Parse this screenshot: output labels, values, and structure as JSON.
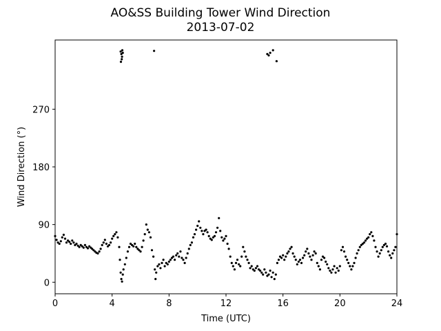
{
  "chart_data": {
    "type": "scatter",
    "title": "AO&SS Building Tower Wind Direction",
    "subtitle": "2013-07-02",
    "xlabel": "Time (UTC)",
    "ylabel": "Wind Direction (°)",
    "xlim": [
      0,
      24
    ],
    "ylim": [
      -18,
      378
    ],
    "xticks": [
      0,
      4,
      8,
      12,
      16,
      20,
      24
    ],
    "yticks": [
      0,
      90,
      180,
      270
    ],
    "grid": false,
    "marker_color": "#000000",
    "series": [
      {
        "points": [
          [
            0.0,
            72
          ],
          [
            0.1,
            66
          ],
          [
            0.2,
            62
          ],
          [
            0.3,
            60
          ],
          [
            0.4,
            64
          ],
          [
            0.5,
            70
          ],
          [
            0.6,
            74
          ],
          [
            0.7,
            68
          ],
          [
            0.8,
            62
          ],
          [
            0.9,
            65
          ],
          [
            1.0,
            63
          ],
          [
            1.1,
            60
          ],
          [
            1.2,
            65
          ],
          [
            1.3,
            62
          ],
          [
            1.4,
            58
          ],
          [
            1.5,
            60
          ],
          [
            1.6,
            57
          ],
          [
            1.7,
            55
          ],
          [
            1.8,
            58
          ],
          [
            1.9,
            56
          ],
          [
            2.0,
            54
          ],
          [
            2.1,
            58
          ],
          [
            2.2,
            55
          ],
          [
            2.3,
            53
          ],
          [
            2.4,
            56
          ],
          [
            2.5,
            54
          ],
          [
            2.6,
            52
          ],
          [
            2.7,
            50
          ],
          [
            2.8,
            48
          ],
          [
            2.9,
            46
          ],
          [
            3.0,
            45
          ],
          [
            3.1,
            48
          ],
          [
            3.2,
            52
          ],
          [
            3.3,
            58
          ],
          [
            3.4,
            62
          ],
          [
            3.5,
            66
          ],
          [
            3.6,
            60
          ],
          [
            3.7,
            56
          ],
          [
            3.8,
            58
          ],
          [
            3.9,
            62
          ],
          [
            4.0,
            68
          ],
          [
            4.1,
            72
          ],
          [
            4.2,
            75
          ],
          [
            4.3,
            78
          ],
          [
            4.4,
            70
          ],
          [
            4.5,
            55
          ],
          [
            4.55,
            35
          ],
          [
            4.6,
            15
          ],
          [
            4.65,
            5
          ],
          [
            4.7,
            1
          ],
          [
            4.75,
            12
          ],
          [
            4.8,
            20
          ],
          [
            4.9,
            28
          ],
          [
            5.0,
            38
          ],
          [
            5.1,
            48
          ],
          [
            5.2,
            55
          ],
          [
            5.3,
            60
          ],
          [
            5.4,
            58
          ],
          [
            5.5,
            56
          ],
          [
            5.6,
            60
          ],
          [
            5.7,
            55
          ],
          [
            5.8,
            52
          ],
          [
            5.9,
            50
          ],
          [
            6.0,
            48
          ],
          [
            6.1,
            55
          ],
          [
            6.2,
            65
          ],
          [
            6.3,
            75
          ],
          [
            6.4,
            90
          ],
          [
            6.5,
            82
          ],
          [
            6.6,
            78
          ],
          [
            6.7,
            70
          ],
          [
            6.8,
            50
          ],
          [
            6.9,
            40
          ],
          [
            7.0,
            20
          ],
          [
            7.05,
            5
          ],
          [
            7.1,
            15
          ],
          [
            7.2,
            25
          ],
          [
            7.3,
            28
          ],
          [
            7.4,
            22
          ],
          [
            7.5,
            30
          ],
          [
            7.6,
            35
          ],
          [
            7.7,
            25
          ],
          [
            7.8,
            30
          ],
          [
            7.9,
            28
          ],
          [
            8.0,
            32
          ],
          [
            8.1,
            35
          ],
          [
            8.2,
            38
          ],
          [
            8.3,
            40
          ],
          [
            8.4,
            35
          ],
          [
            8.5,
            42
          ],
          [
            8.6,
            45
          ],
          [
            8.7,
            40
          ],
          [
            8.8,
            48
          ],
          [
            8.9,
            38
          ],
          [
            9.0,
            35
          ],
          [
            9.1,
            30
          ],
          [
            9.2,
            38
          ],
          [
            9.3,
            45
          ],
          [
            9.4,
            52
          ],
          [
            9.5,
            58
          ],
          [
            9.6,
            62
          ],
          [
            9.7,
            70
          ],
          [
            9.8,
            75
          ],
          [
            9.9,
            82
          ],
          [
            10.0,
            88
          ],
          [
            10.1,
            95
          ],
          [
            10.2,
            85
          ],
          [
            10.3,
            80
          ],
          [
            10.4,
            75
          ],
          [
            10.5,
            80
          ],
          [
            10.6,
            82
          ],
          [
            10.7,
            78
          ],
          [
            10.8,
            72
          ],
          [
            10.9,
            68
          ],
          [
            11.0,
            66
          ],
          [
            11.1,
            70
          ],
          [
            11.2,
            72
          ],
          [
            11.3,
            78
          ],
          [
            11.4,
            85
          ],
          [
            11.5,
            100
          ],
          [
            11.6,
            80
          ],
          [
            11.7,
            70
          ],
          [
            11.8,
            65
          ],
          [
            11.9,
            68
          ],
          [
            12.0,
            72
          ],
          [
            12.1,
            60
          ],
          [
            12.2,
            52
          ],
          [
            12.3,
            40
          ],
          [
            12.4,
            30
          ],
          [
            12.5,
            25
          ],
          [
            12.6,
            20
          ],
          [
            12.7,
            30
          ],
          [
            12.8,
            35
          ],
          [
            12.9,
            28
          ],
          [
            13.0,
            25
          ],
          [
            13.1,
            40
          ],
          [
            13.2,
            55
          ],
          [
            13.3,
            48
          ],
          [
            13.4,
            40
          ],
          [
            13.5,
            35
          ],
          [
            13.6,
            30
          ],
          [
            13.7,
            22
          ],
          [
            13.8,
            25
          ],
          [
            13.9,
            20
          ],
          [
            14.0,
            18
          ],
          [
            14.1,
            22
          ],
          [
            14.2,
            25
          ],
          [
            14.3,
            20
          ],
          [
            14.4,
            18
          ],
          [
            14.5,
            15
          ],
          [
            14.6,
            12
          ],
          [
            14.7,
            20
          ],
          [
            14.8,
            15
          ],
          [
            14.9,
            10
          ],
          [
            15.0,
            12
          ],
          [
            15.1,
            18
          ],
          [
            15.2,
            8
          ],
          [
            15.3,
            15
          ],
          [
            15.4,
            5
          ],
          [
            15.5,
            12
          ],
          [
            15.6,
            30
          ],
          [
            15.7,
            35
          ],
          [
            15.8,
            40
          ],
          [
            15.9,
            38
          ],
          [
            16.0,
            42
          ],
          [
            16.1,
            35
          ],
          [
            16.2,
            40
          ],
          [
            16.3,
            45
          ],
          [
            16.4,
            48
          ],
          [
            16.5,
            52
          ],
          [
            16.6,
            55
          ],
          [
            16.7,
            45
          ],
          [
            16.8,
            40
          ],
          [
            16.9,
            35
          ],
          [
            17.0,
            28
          ],
          [
            17.1,
            32
          ],
          [
            17.2,
            35
          ],
          [
            17.3,
            30
          ],
          [
            17.4,
            38
          ],
          [
            17.5,
            42
          ],
          [
            17.6,
            48
          ],
          [
            17.7,
            52
          ],
          [
            17.8,
            45
          ],
          [
            17.9,
            40
          ],
          [
            18.0,
            35
          ],
          [
            18.1,
            42
          ],
          [
            18.2,
            48
          ],
          [
            18.3,
            45
          ],
          [
            18.4,
            30
          ],
          [
            18.5,
            25
          ],
          [
            18.6,
            20
          ],
          [
            18.7,
            35
          ],
          [
            18.8,
            40
          ],
          [
            18.9,
            38
          ],
          [
            19.0,
            32
          ],
          [
            19.1,
            28
          ],
          [
            19.2,
            22
          ],
          [
            19.3,
            18
          ],
          [
            19.4,
            15
          ],
          [
            19.5,
            20
          ],
          [
            19.6,
            25
          ],
          [
            19.7,
            15
          ],
          [
            19.8,
            22
          ],
          [
            19.9,
            18
          ],
          [
            20.0,
            25
          ],
          [
            20.1,
            50
          ],
          [
            20.2,
            55
          ],
          [
            20.3,
            48
          ],
          [
            20.4,
            40
          ],
          [
            20.5,
            35
          ],
          [
            20.6,
            30
          ],
          [
            20.7,
            25
          ],
          [
            20.8,
            20
          ],
          [
            20.9,
            25
          ],
          [
            21.0,
            30
          ],
          [
            21.1,
            38
          ],
          [
            21.2,
            45
          ],
          [
            21.3,
            50
          ],
          [
            21.4,
            55
          ],
          [
            21.5,
            58
          ],
          [
            21.6,
            60
          ],
          [
            21.7,
            62
          ],
          [
            21.8,
            65
          ],
          [
            21.9,
            68
          ],
          [
            22.0,
            70
          ],
          [
            22.1,
            75
          ],
          [
            22.2,
            78
          ],
          [
            22.3,
            72
          ],
          [
            22.4,
            65
          ],
          [
            22.5,
            55
          ],
          [
            22.6,
            48
          ],
          [
            22.7,
            40
          ],
          [
            22.8,
            45
          ],
          [
            22.9,
            50
          ],
          [
            23.0,
            55
          ],
          [
            23.1,
            58
          ],
          [
            23.2,
            60
          ],
          [
            23.3,
            56
          ],
          [
            23.4,
            48
          ],
          [
            23.5,
            42
          ],
          [
            23.6,
            38
          ],
          [
            23.7,
            45
          ],
          [
            23.8,
            50
          ],
          [
            23.9,
            55
          ],
          [
            24.0,
            75
          ],
          [
            4.6,
            360
          ],
          [
            4.65,
            356
          ],
          [
            4.7,
            352
          ],
          [
            4.75,
            358
          ],
          [
            4.62,
            344
          ],
          [
            4.68,
            348
          ],
          [
            4.72,
            362
          ],
          [
            6.95,
            361
          ],
          [
            14.9,
            356
          ],
          [
            15.0,
            354
          ],
          [
            15.3,
            362
          ],
          [
            15.55,
            345
          ],
          [
            15.1,
            358
          ]
        ]
      }
    ]
  }
}
